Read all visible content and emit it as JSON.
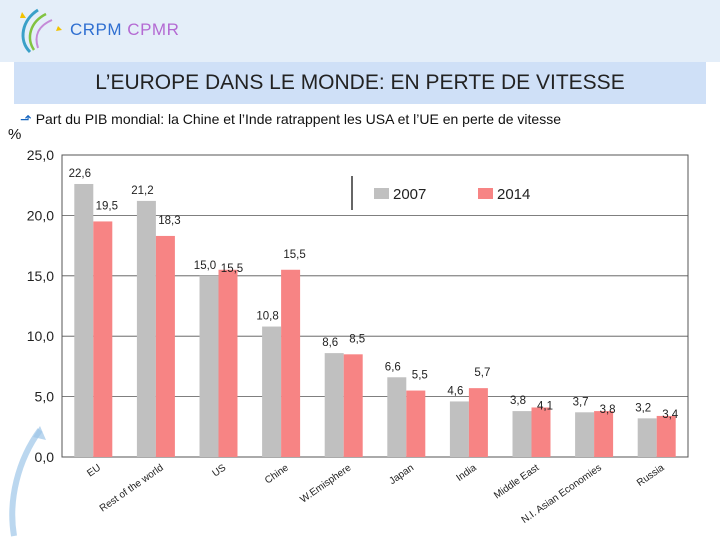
{
  "header": {
    "brand_left": "CRPM",
    "brand_right": "CPMR"
  },
  "title": "L’EUROPE DANS LE MONDE: EN PERTE DE VITESSE",
  "subtitle": "Part du PIB mondial: la Chine et l’Inde ratrappent les USA et l’UE en perte de vitesse",
  "colors": {
    "series_2007": "#c0c0c0",
    "series_2014": "#f78484",
    "title_bg": "#cfe0f7",
    "header_bg": "#e4eef9"
  },
  "chart_data": {
    "type": "bar",
    "title": "",
    "ylabel": "%",
    "xlabel": "",
    "ylim": [
      0,
      25
    ],
    "yticks": [
      "0,0",
      "5,0",
      "10,0",
      "15,0",
      "20,0",
      "25,0"
    ],
    "categories": [
      "EU",
      "Rest of the world",
      "US",
      "Chine",
      "W.Emisphere",
      "Japan",
      "India",
      "Middle East",
      "N.I. Asian Economies",
      "Russia"
    ],
    "series": [
      {
        "name": "2007",
        "values": [
          22.6,
          21.2,
          15.0,
          10.8,
          8.6,
          6.6,
          4.6,
          3.8,
          3.7,
          3.2
        ],
        "labels": [
          "22,6",
          "21,2",
          "15,0",
          "10,8",
          "8,6",
          "6,6",
          "4,6",
          "3,8",
          "3,7",
          "3,2"
        ]
      },
      {
        "name": "2014",
        "values": [
          19.5,
          18.3,
          15.5,
          15.5,
          8.5,
          5.5,
          5.7,
          4.1,
          3.8,
          3.4
        ],
        "labels": [
          "19,5",
          "18,3",
          "15,5",
          "15,5",
          "8,5",
          "5,5",
          "5,7",
          "4,1",
          "3,8",
          "3,4"
        ]
      }
    ],
    "legend": [
      "2007",
      "2014"
    ]
  }
}
